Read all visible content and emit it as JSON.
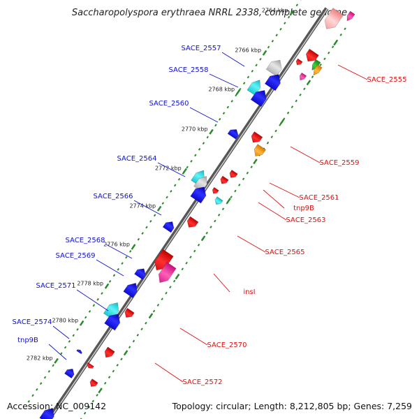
{
  "title": "Saccharopolyspora erythraea NRRL 2338, complete genome",
  "accession": "Accession: NC_009142",
  "topology": "Topology: circular; Length: 8,212,805 bp; Genes: 7,259",
  "colors": {
    "backbone": "#7a7a7a",
    "tick_major": "#2a8a2a",
    "tick_minor": "#2a8a2a",
    "plus_label": "#1010d0",
    "minus_label": "#dd1010",
    "blue": "#1616ee",
    "cyan": "#22dde0",
    "grey": "#c8c8c8",
    "red": "#ee1111",
    "orange": "#ff9a00",
    "green": "#22b022",
    "pink": "#ee2a9a",
    "salmon": "#ffb0b0"
  },
  "ticks": [
    "2764 kbp",
    "2766 kbp",
    "2768 kbp",
    "2770 kbp",
    "2772 kbp",
    "2774 kbp",
    "2776 kbp",
    "2778 kbp",
    "2780 kbp",
    "2782 kbp"
  ],
  "plus_labels": [
    "SACE_2557",
    "SACE_2558",
    "SACE_2560",
    "SACE_2564",
    "SACE_2566",
    "SACE_2568",
    "SACE_2569",
    "SACE_2571",
    "SACE_2574",
    "tnp9B"
  ],
  "minus_labels": [
    "SACE_2555",
    "SACE_2559",
    "SACE_2561",
    "tnp9B",
    "SACE_2563",
    "SACE_2565",
    "insI",
    "SACE_2570",
    "SACE_2572"
  ]
}
